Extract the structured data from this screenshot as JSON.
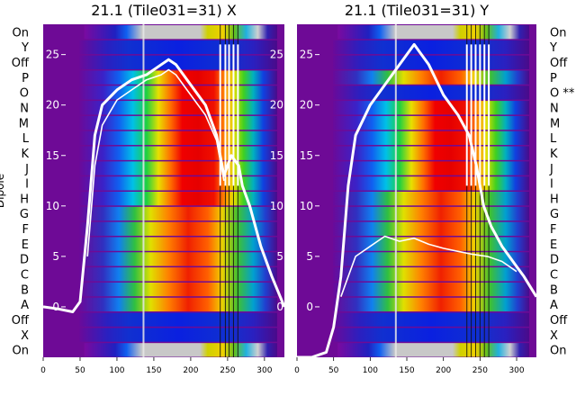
{
  "chart_data": [
    {
      "type": "heatmap",
      "title": "21.1 (Tile031=31) X",
      "ylabel": "Dipole",
      "x_ticks": [
        0,
        50,
        100,
        150,
        200,
        250,
        300
      ],
      "xlim": [
        0,
        327
      ],
      "row_labels": [
        "On",
        "X",
        "Off",
        "A",
        "B",
        "C",
        "D",
        "E",
        "F",
        "G",
        "H",
        "I",
        "J",
        "K",
        "L",
        "M",
        "N",
        "O",
        "P",
        "Off",
        "Y",
        "On"
      ],
      "row_marks": [
        "",
        "",
        "",
        "",
        "",
        "",
        "",
        "",
        "",
        "",
        "",
        "",
        "",
        "",
        "",
        "",
        "",
        "",
        "",
        "",
        "",
        ""
      ],
      "overlay_ticks": [
        0,
        5,
        10,
        15,
        20,
        25
      ],
      "overlay_range": [
        -5,
        28
      ],
      "curves": [
        {
          "x": [
            0,
            20,
            40,
            50,
            60,
            70,
            80,
            100,
            120,
            140,
            160,
            170,
            180,
            200,
            220,
            235,
            245,
            255,
            265,
            270,
            280,
            295,
            310,
            327
          ],
          "y": [
            0,
            -0.2,
            -0.5,
            0.5,
            8,
            17,
            20,
            21.5,
            22.5,
            23,
            24,
            24.5,
            24,
            22,
            20,
            17,
            13,
            15,
            14,
            12,
            10,
            6,
            3,
            0
          ]
        },
        {
          "x": [
            60,
            70,
            80,
            100,
            120,
            140,
            160,
            170,
            180,
            200,
            220,
            235,
            245
          ],
          "y": [
            5,
            14,
            18,
            20.5,
            21.5,
            22.5,
            23,
            23.5,
            23,
            21,
            19,
            16.5,
            12.5
          ]
        }
      ],
      "spikes": [
        136,
        240,
        247,
        252,
        258,
        264
      ]
    },
    {
      "type": "heatmap",
      "title": "21.1 (Tile031=31) Y",
      "ylabel": "",
      "x_ticks": [
        0,
        50,
        100,
        150,
        200,
        250,
        300
      ],
      "xlim": [
        0,
        327
      ],
      "row_labels": [
        "On",
        "X",
        "Off",
        "A",
        "B",
        "C",
        "D",
        "E",
        "F",
        "G",
        "H",
        "I",
        "J",
        "K",
        "L",
        "M",
        "N",
        "O",
        "P",
        "Off",
        "Y",
        "On"
      ],
      "row_marks": [
        "",
        "",
        "",
        "",
        "",
        "",
        "",
        "",
        "",
        "",
        "",
        "",
        "",
        "",
        "",
        "",
        "",
        "**",
        "",
        "",
        "",
        ""
      ],
      "overlay_ticks": [
        0,
        5,
        10,
        15,
        20,
        25
      ],
      "overlay_range": [
        -5,
        28
      ],
      "curves": [
        {
          "x": [
            0,
            20,
            40,
            50,
            60,
            70,
            80,
            100,
            120,
            140,
            150,
            160,
            170,
            180,
            200,
            220,
            235,
            245,
            255,
            265,
            280,
            300,
            310,
            327
          ],
          "y": [
            -5,
            -5,
            -4.5,
            -2,
            3,
            12,
            17,
            20,
            22,
            24,
            25,
            26,
            25,
            24,
            21,
            19,
            17,
            14,
            10,
            8,
            6,
            4,
            3,
            1
          ]
        },
        {
          "x": [
            60,
            70,
            80,
            100,
            120,
            140,
            160,
            180,
            200,
            220,
            240,
            260,
            280,
            300
          ],
          "y": [
            1,
            3,
            5,
            6,
            7,
            6.5,
            6.8,
            6.2,
            5.8,
            5.5,
            5.2,
            5.0,
            4.5,
            3.5
          ]
        }
      ],
      "spikes": [
        135,
        232,
        238,
        244,
        250,
        256,
        262
      ]
    }
  ]
}
